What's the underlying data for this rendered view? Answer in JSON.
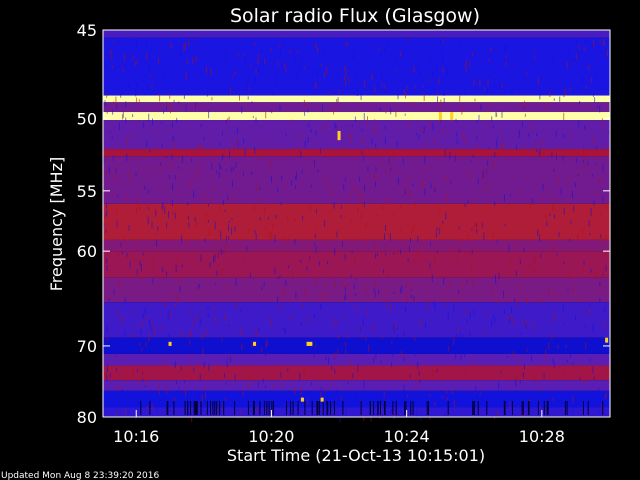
{
  "chart_data": {
    "type": "heatmap",
    "title": "Solar radio Flux (Glasgow)",
    "xlabel": "Start Time (21-Oct-13 10:15:01)",
    "ylabel": "Frequency [MHz]",
    "ylim": [
      45,
      80
    ],
    "y_ticks": [
      {
        "value": 45,
        "label": "45"
      },
      {
        "value": 50,
        "label": "50"
      },
      {
        "value": 55,
        "label": "55"
      },
      {
        "value": 60,
        "label": "60"
      },
      {
        "value": 70,
        "label": "70"
      },
      {
        "value": 80,
        "label": "80"
      }
    ],
    "xlim": [
      "10:15:01",
      "10:30:01"
    ],
    "x_ticks": [
      {
        "value": "10:16",
        "label": "10:16"
      },
      {
        "value": "10:20",
        "label": "10:20"
      },
      {
        "value": "10:24",
        "label": "10:24"
      },
      {
        "value": "10:28",
        "label": "10:28"
      }
    ],
    "bands": [
      {
        "f1": 45,
        "f2": 45.4,
        "level": 0.35
      },
      {
        "f1": 45.4,
        "f2": 48.6,
        "level": 0.22
      },
      {
        "f1": 48.6,
        "f2": 49.0,
        "level": 1.0
      },
      {
        "f1": 49.0,
        "f2": 49.6,
        "level": 0.45
      },
      {
        "f1": 49.6,
        "f2": 50.1,
        "level": 1.0
      },
      {
        "f1": 50.1,
        "f2": 52.0,
        "level": 0.42
      },
      {
        "f1": 52.0,
        "f2": 52.5,
        "level": 0.6
      },
      {
        "f1": 52.5,
        "f2": 56.0,
        "level": 0.46
      },
      {
        "f1": 56.0,
        "f2": 59.0,
        "level": 0.62
      },
      {
        "f1": 59.0,
        "f2": 60.0,
        "level": 0.5
      },
      {
        "f1": 60.0,
        "f2": 62.5,
        "level": 0.56
      },
      {
        "f1": 62.5,
        "f2": 65.0,
        "level": 0.48
      },
      {
        "f1": 65.0,
        "f2": 69.0,
        "level": 0.32
      },
      {
        "f1": 69.0,
        "f2": 71.0,
        "level": 0.15
      },
      {
        "f1": 71.0,
        "f2": 72.5,
        "level": 0.4
      },
      {
        "f1": 72.5,
        "f2": 74.5,
        "level": 0.58
      },
      {
        "f1": 74.5,
        "f2": 76.0,
        "level": 0.4
      },
      {
        "f1": 76.0,
        "f2": 78.5,
        "level": 0.18
      },
      {
        "f1": 78.5,
        "f2": 80.0,
        "level": 0.28
      }
    ],
    "bursts": [
      {
        "time": "10:22:00",
        "f1": 50.8,
        "f2": 51.4
      },
      {
        "time": "10:25:00",
        "f1": 49.6,
        "f2": 50.1
      },
      {
        "time": "10:25:20",
        "f1": 49.6,
        "f2": 50.1
      },
      {
        "time": "10:21:05",
        "f1": 69.5,
        "f2": 70.0
      },
      {
        "time": "10:21:10",
        "f1": 69.5,
        "f2": 70.0
      },
      {
        "time": "10:17:00",
        "f1": 69.5,
        "f2": 70.0
      },
      {
        "time": "10:19:30",
        "f1": 69.5,
        "f2": 70.0
      },
      {
        "time": "10:20:55",
        "f1": 77.0,
        "f2": 77.6
      },
      {
        "time": "10:21:30",
        "f1": 77.0,
        "f2": 77.6
      },
      {
        "time": "10:29:55",
        "f1": 69.0,
        "f2": 69.6
      }
    ]
  },
  "footer": {
    "updated": "Updated Mon Aug  8 23:39:20 2016"
  }
}
